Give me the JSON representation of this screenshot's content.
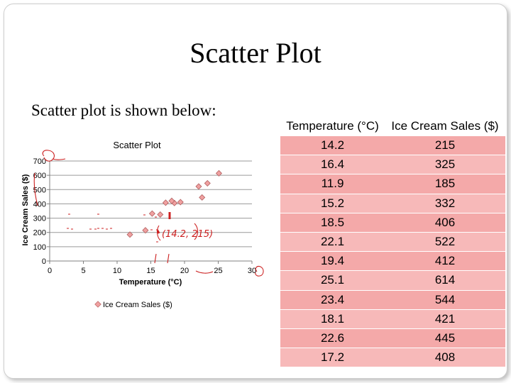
{
  "slide": {
    "title": "Scatter Plot",
    "subtitle": "Scatter plot is shown below:"
  },
  "table": {
    "headers": [
      "Temperature (°C)",
      "Ice Cream Sales ($)"
    ],
    "rows": [
      [
        "14.2",
        "215"
      ],
      [
        "16.4",
        "325"
      ],
      [
        "11.9",
        "185"
      ],
      [
        "15.2",
        "332"
      ],
      [
        "18.5",
        "406"
      ],
      [
        "22.1",
        "522"
      ],
      [
        "19.4",
        "412"
      ],
      [
        "25.1",
        "614"
      ],
      [
        "23.4",
        "544"
      ],
      [
        "18.1",
        "421"
      ],
      [
        "22.6",
        "445"
      ],
      [
        "17.2",
        "408"
      ]
    ]
  },
  "chart_data": {
    "type": "scatter",
    "title": "Scatter Plot",
    "xlabel": "Temperature (°C)",
    "ylabel": "Ice Cream Sales ($)",
    "xlim": [
      0,
      30
    ],
    "ylim": [
      0,
      700
    ],
    "xticks": [
      "0",
      "5",
      "10",
      "15",
      "20",
      "25",
      "30"
    ],
    "yticks": [
      "0",
      "100",
      "200",
      "300",
      "400",
      "500",
      "600",
      "700"
    ],
    "grid": "horizontal",
    "legend_position": "bottom",
    "marker_color": "#f0a0a0",
    "series": [
      {
        "name": "Ice Cream Sales ($)",
        "points": [
          {
            "x": 14.2,
            "y": 215
          },
          {
            "x": 16.4,
            "y": 325
          },
          {
            "x": 11.9,
            "y": 185
          },
          {
            "x": 15.2,
            "y": 332
          },
          {
            "x": 18.5,
            "y": 406
          },
          {
            "x": 22.1,
            "y": 522
          },
          {
            "x": 19.4,
            "y": 412
          },
          {
            "x": 25.1,
            "y": 614
          },
          {
            "x": 23.4,
            "y": 544
          },
          {
            "x": 18.1,
            "y": 421
          },
          {
            "x": 22.6,
            "y": 445
          },
          {
            "x": 17.2,
            "y": 408
          }
        ]
      }
    ],
    "annotation": "(14.2, 215)"
  }
}
